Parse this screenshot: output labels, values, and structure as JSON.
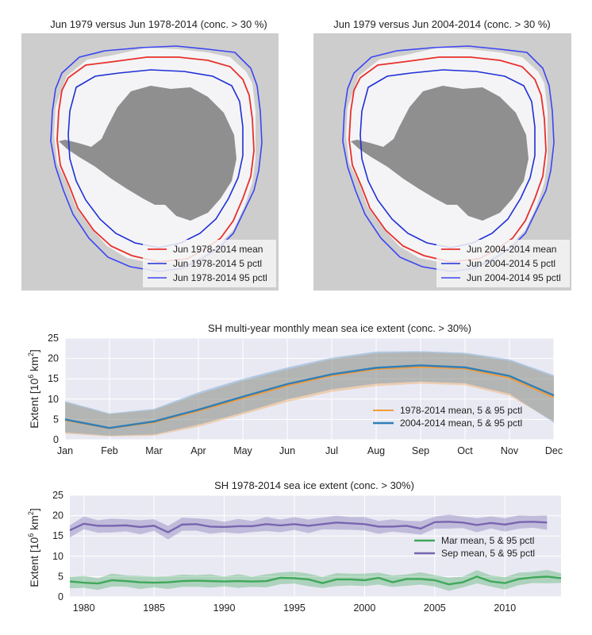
{
  "maps": [
    {
      "title": "Jun 1979 versus Jun 1978-2014 (conc. > 30 %)",
      "legend": [
        "Jun 1978-2014 mean",
        "Jun 1978-2014 5 pctl",
        "Jun 1978-2014 95 pctl"
      ],
      "colors": {
        "mean": "#e8302c",
        "p5": "#1f2fd6",
        "p95": "#3c46f2",
        "ice": "#f4f4f6",
        "land": "#8f8f8f",
        "ocean": "#cdcdcd"
      }
    },
    {
      "title": "Jun 1979 versus Jun 2004-2014 (conc. > 30 %)",
      "legend": [
        "Jun 2004-2014 mean",
        "Jun 2004-2014 5 pctl",
        "Jun 2004-2014 95 pctl"
      ],
      "colors": {
        "mean": "#e8302c",
        "p5": "#1f2fd6",
        "p95": "#3c46f2",
        "ice": "#f4f4f6",
        "land": "#8f8f8f",
        "ocean": "#cdcdcd"
      }
    }
  ],
  "chart_data": [
    {
      "type": "line",
      "title": "SH multi-year monthly mean sea ice extent (conc. > 30%)",
      "ylabel": "Extent [10^6 km^2]",
      "ylabel_parts": {
        "main": "Extent [10",
        "exp1": "6",
        "mid": " km",
        "exp2": "2",
        "end": "]"
      },
      "categories": [
        "Jan",
        "Feb",
        "Mar",
        "Apr",
        "May",
        "Jun",
        "Jul",
        "Aug",
        "Sep",
        "Oct",
        "Nov",
        "Dec"
      ],
      "ylim": [
        0,
        25
      ],
      "yticks": [
        0,
        5,
        10,
        15,
        20,
        25
      ],
      "grid": true,
      "legend_position": "lower-right",
      "series": [
        {
          "name": "1978-2014 mean, 5 & 95 pctl",
          "color": "#f39a3a",
          "values": [
            4.8,
            2.8,
            4.3,
            7.1,
            10.2,
            13.3,
            15.8,
            17.4,
            17.9,
            17.5,
            15.2,
            10.4
          ],
          "p5": [
            1.5,
            0.8,
            1.0,
            3.2,
            6.2,
            9.3,
            11.8,
            13.2,
            13.8,
            13.4,
            10.8,
            4.5
          ],
          "p95": [
            9.2,
            6.3,
            7.3,
            11.2,
            14.5,
            17.3,
            19.8,
            21.3,
            21.5,
            21.1,
            19.4,
            15.5
          ]
        },
        {
          "name": "2004-2014 mean, 5 & 95 pctl",
          "color": "#2f7fb8",
          "values": [
            5.0,
            2.9,
            4.5,
            7.4,
            10.6,
            13.7,
            16.1,
            17.7,
            18.3,
            17.8,
            15.7,
            10.9
          ],
          "p5": [
            1.8,
            1.0,
            1.3,
            3.7,
            6.7,
            9.9,
            12.4,
            13.8,
            14.3,
            13.9,
            11.3,
            4.2
          ],
          "p95": [
            9.5,
            6.5,
            7.6,
            11.7,
            15.0,
            17.8,
            20.2,
            21.7,
            21.8,
            21.4,
            19.8,
            15.9
          ]
        }
      ]
    },
    {
      "type": "line",
      "title": "SH 1978-2014 sea ice extent (conc. > 30%)",
      "ylabel": "Extent [10^6 km^2]",
      "ylabel_parts": {
        "main": "Extent [10",
        "exp1": "6",
        "mid": " km",
        "exp2": "2",
        "end": "]"
      },
      "xlim": [
        1979,
        2014
      ],
      "xticks": [
        1980,
        1985,
        1990,
        1995,
        2000,
        2005,
        2010
      ],
      "ylim": [
        0,
        25
      ],
      "yticks": [
        0,
        5,
        10,
        15,
        20,
        25
      ],
      "grid": true,
      "legend_position": "right",
      "series": [
        {
          "name": "Mar mean, 5 & 95 pctl",
          "color": "#3fa85a",
          "x": [
            1979,
            1980,
            1981,
            1982,
            1983,
            1984,
            1985,
            1986,
            1987,
            1988,
            1989,
            1990,
            1991,
            1992,
            1993,
            1994,
            1995,
            1996,
            1997,
            1998,
            1999,
            2000,
            2001,
            2002,
            2003,
            2004,
            2005,
            2006,
            2007,
            2008,
            2009,
            2010,
            2011,
            2012,
            2013,
            2014
          ],
          "values": [
            3.8,
            3.5,
            3.3,
            4.1,
            3.9,
            3.6,
            3.5,
            3.6,
            3.9,
            4.0,
            3.9,
            3.8,
            3.9,
            3.8,
            3.9,
            4.7,
            4.6,
            4.3,
            3.4,
            4.3,
            4.3,
            4.1,
            4.7,
            3.6,
            4.4,
            4.4,
            4.1,
            3.1,
            3.6,
            5.0,
            3.8,
            3.4,
            4.4,
            4.8,
            5.0,
            4.6
          ],
          "band": 1.4
        },
        {
          "name": "Sep mean, 5 & 95 pctl",
          "color": "#7866b0",
          "x": [
            1979,
            1980,
            1981,
            1982,
            1983,
            1984,
            1985,
            1986,
            1987,
            1988,
            1989,
            1990,
            1991,
            1992,
            1993,
            1994,
            1995,
            1996,
            1997,
            1998,
            1999,
            2000,
            2001,
            2002,
            2003,
            2004,
            2005,
            2006,
            2007,
            2008,
            2009,
            2010,
            2011,
            2012,
            2013
          ],
          "values": [
            16.4,
            18.0,
            17.5,
            17.5,
            17.6,
            17.2,
            17.5,
            15.9,
            17.8,
            17.9,
            17.3,
            17.2,
            17.4,
            17.4,
            17.9,
            17.6,
            17.9,
            17.5,
            17.9,
            18.3,
            18.1,
            17.9,
            17.3,
            17.3,
            17.5,
            16.8,
            18.4,
            18.5,
            18.3,
            17.7,
            18.2,
            17.8,
            18.4,
            18.5,
            18.3
          ],
          "band": 1.5
        }
      ]
    }
  ]
}
